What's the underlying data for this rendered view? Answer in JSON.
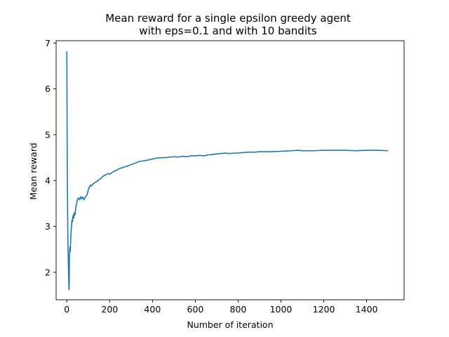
{
  "chart_data": {
    "type": "line",
    "title_lines": [
      "Mean reward for a single epsilon greedy agent",
      "with eps=0.1 and with 10 bandits"
    ],
    "xlabel": "Number of iteration",
    "ylabel": "Mean reward",
    "xlim": [
      -50,
      1575
    ],
    "ylim": [
      1.4,
      7.05
    ],
    "xticks": [
      0,
      200,
      400,
      600,
      800,
      1000,
      1200,
      1400
    ],
    "xtick_labels": [
      "0",
      "200",
      "400",
      "600",
      "800",
      "1000",
      "1200",
      "1400"
    ],
    "yticks": [
      2,
      3,
      4,
      5,
      6,
      7
    ],
    "ytick_labels": [
      "2",
      "3",
      "4",
      "5",
      "6",
      "7"
    ],
    "grid": false,
    "line_color": "#1f77b4",
    "series": [
      {
        "points": [
          [
            0,
            6.82
          ],
          [
            1,
            5.6
          ],
          [
            2,
            4.3
          ],
          [
            3,
            3.6
          ],
          [
            4,
            3.1
          ],
          [
            5,
            2.7
          ],
          [
            6,
            2.4
          ],
          [
            7,
            2.2
          ],
          [
            8,
            2.0
          ],
          [
            9,
            1.8
          ],
          [
            10,
            1.65
          ],
          [
            11,
            1.62
          ],
          [
            12,
            2.3
          ],
          [
            14,
            2.55
          ],
          [
            16,
            2.45
          ],
          [
            18,
            2.7
          ],
          [
            20,
            2.9
          ],
          [
            22,
            3.0
          ],
          [
            24,
            3.15
          ],
          [
            26,
            3.1
          ],
          [
            28,
            3.2
          ],
          [
            30,
            3.25
          ],
          [
            32,
            3.18
          ],
          [
            35,
            3.3
          ],
          [
            38,
            3.25
          ],
          [
            40,
            3.32
          ],
          [
            43,
            3.45
          ],
          [
            46,
            3.5
          ],
          [
            50,
            3.6
          ],
          [
            55,
            3.62
          ],
          [
            60,
            3.58
          ],
          [
            65,
            3.65
          ],
          [
            70,
            3.6
          ],
          [
            75,
            3.64
          ],
          [
            80,
            3.58
          ],
          [
            85,
            3.63
          ],
          [
            90,
            3.66
          ],
          [
            95,
            3.7
          ],
          [
            100,
            3.8
          ],
          [
            105,
            3.85
          ],
          [
            110,
            3.9
          ],
          [
            115,
            3.88
          ],
          [
            120,
            3.92
          ],
          [
            130,
            3.95
          ],
          [
            140,
            3.98
          ],
          [
            150,
            4.02
          ],
          [
            160,
            4.05
          ],
          [
            170,
            4.1
          ],
          [
            180,
            4.12
          ],
          [
            190,
            4.15
          ],
          [
            200,
            4.14
          ],
          [
            210,
            4.17
          ],
          [
            220,
            4.2
          ],
          [
            230,
            4.22
          ],
          [
            240,
            4.25
          ],
          [
            250,
            4.27
          ],
          [
            260,
            4.28
          ],
          [
            270,
            4.3
          ],
          [
            280,
            4.31
          ],
          [
            290,
            4.33
          ],
          [
            300,
            4.35
          ],
          [
            320,
            4.38
          ],
          [
            340,
            4.42
          ],
          [
            360,
            4.43
          ],
          [
            380,
            4.45
          ],
          [
            400,
            4.47
          ],
          [
            420,
            4.49
          ],
          [
            440,
            4.5
          ],
          [
            460,
            4.5
          ],
          [
            480,
            4.51
          ],
          [
            500,
            4.52
          ],
          [
            520,
            4.51
          ],
          [
            540,
            4.53
          ],
          [
            560,
            4.52
          ],
          [
            580,
            4.54
          ],
          [
            600,
            4.54
          ],
          [
            620,
            4.55
          ],
          [
            640,
            4.54
          ],
          [
            660,
            4.56
          ],
          [
            680,
            4.57
          ],
          [
            700,
            4.58
          ],
          [
            720,
            4.59
          ],
          [
            740,
            4.6
          ],
          [
            760,
            4.59
          ],
          [
            780,
            4.6
          ],
          [
            800,
            4.6
          ],
          [
            820,
            4.61
          ],
          [
            850,
            4.62
          ],
          [
            880,
            4.62
          ],
          [
            900,
            4.63
          ],
          [
            950,
            4.63
          ],
          [
            1000,
            4.64
          ],
          [
            1050,
            4.65
          ],
          [
            1080,
            4.66
          ],
          [
            1100,
            4.65
          ],
          [
            1150,
            4.65
          ],
          [
            1200,
            4.66
          ],
          [
            1250,
            4.66
          ],
          [
            1300,
            4.66
          ],
          [
            1350,
            4.65
          ],
          [
            1400,
            4.66
          ],
          [
            1450,
            4.66
          ],
          [
            1500,
            4.65
          ]
        ]
      }
    ]
  }
}
